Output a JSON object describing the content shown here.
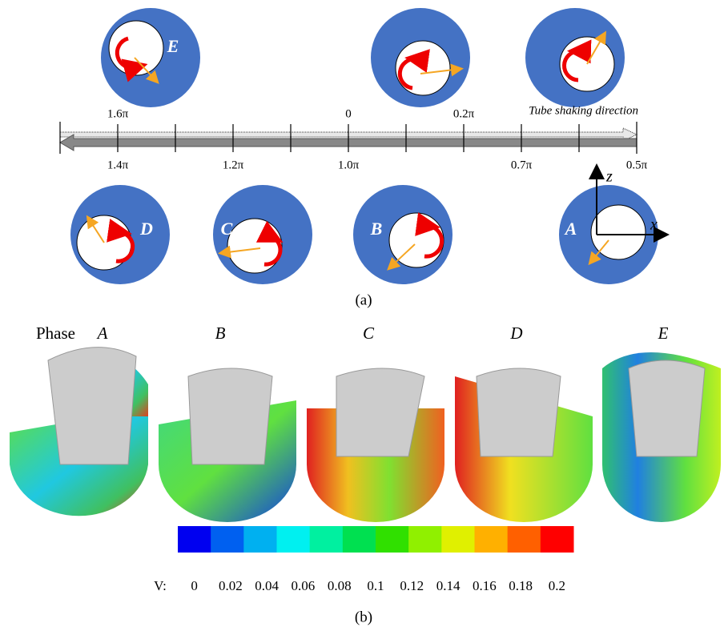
{
  "panel_a": {
    "circle_labels": [
      "E",
      "D",
      "C",
      "B",
      "A"
    ],
    "top_labels": [
      "1.6π",
      "0",
      "0.2π"
    ],
    "bottom_labels": [
      "1.4π",
      "1.2π",
      "1.0π",
      "0.7π",
      "0.5π"
    ],
    "direction": "Tube shaking direction",
    "axis_z": "z",
    "axis_x": "x",
    "caption": "(a)"
  },
  "panel_b": {
    "title": "Phase",
    "phases": [
      "A",
      "B",
      "C",
      "D",
      "E"
    ],
    "colorbar": {
      "label": "V:",
      "ticks": [
        "0",
        "0.02",
        "0.04",
        "0.06",
        "0.08",
        "0.1",
        "0.12",
        "0.14",
        "0.16",
        "0.18",
        "0.2"
      ],
      "colors": [
        "#0000f0",
        "#0060f0",
        "#00b0f0",
        "#00f0f0",
        "#00f0a0",
        "#00e050",
        "#30e000",
        "#90f000",
        "#e0f000",
        "#ffb000",
        "#ff6000",
        "#ff0000"
      ]
    },
    "caption": "(b)"
  }
}
